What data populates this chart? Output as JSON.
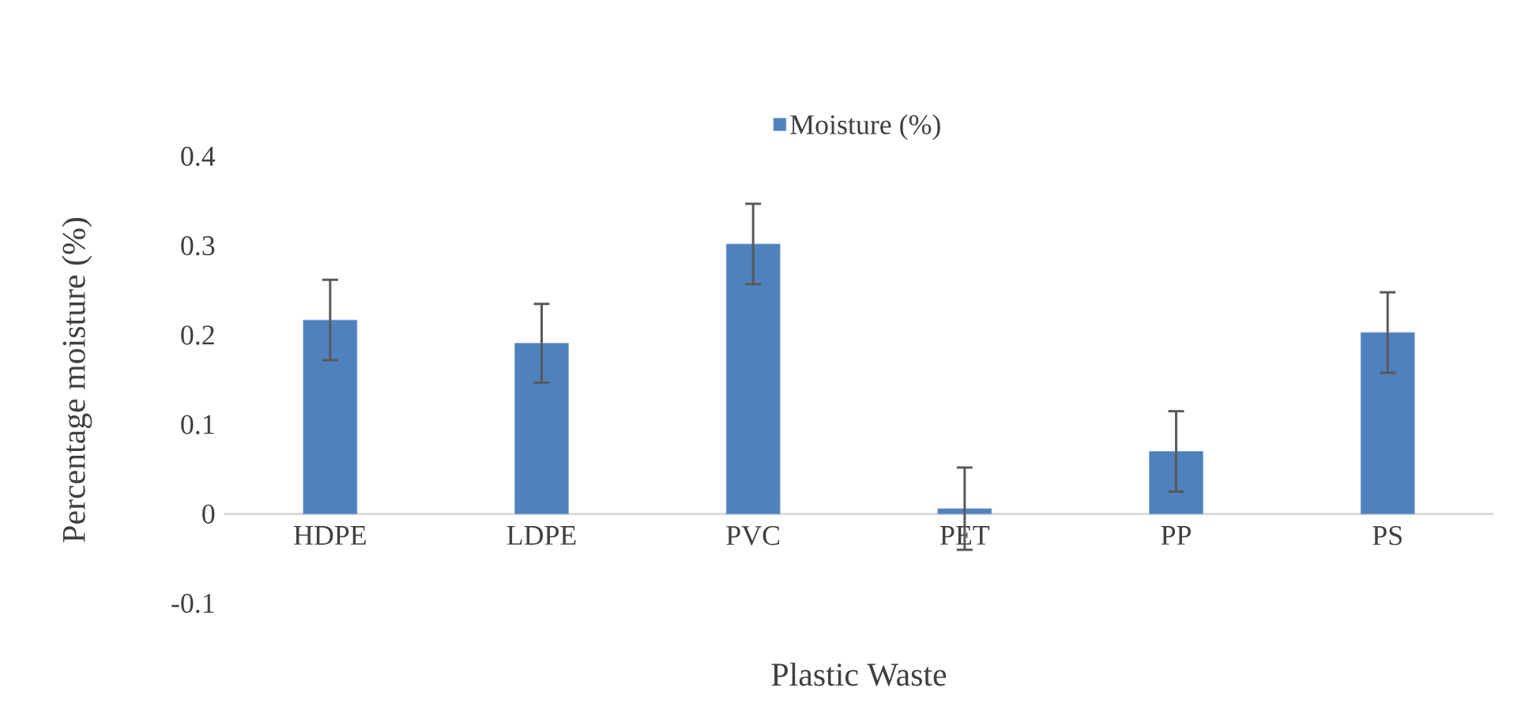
{
  "chart_data": {
    "type": "bar",
    "xlabel": "Plastic Waste",
    "ylabel": "Percentage moisture (%)",
    "categories": [
      "HDPE",
      "LDPE",
      "PVC",
      "PET",
      "PP",
      "PS"
    ],
    "series": [
      {
        "name": "Moisture (%)",
        "color": "#4f81bd",
        "values": [
          0.217,
          0.191,
          0.302,
          0.006,
          0.07,
          0.203
        ],
        "errors": [
          0.045,
          0.044,
          0.045,
          0.046,
          0.045,
          0.045
        ]
      }
    ],
    "ylim": [
      -0.1,
      0.4
    ],
    "yticks": [
      -0.1,
      0,
      0.1,
      0.2,
      0.3,
      0.4
    ],
    "legend": "top",
    "grid": false
  }
}
